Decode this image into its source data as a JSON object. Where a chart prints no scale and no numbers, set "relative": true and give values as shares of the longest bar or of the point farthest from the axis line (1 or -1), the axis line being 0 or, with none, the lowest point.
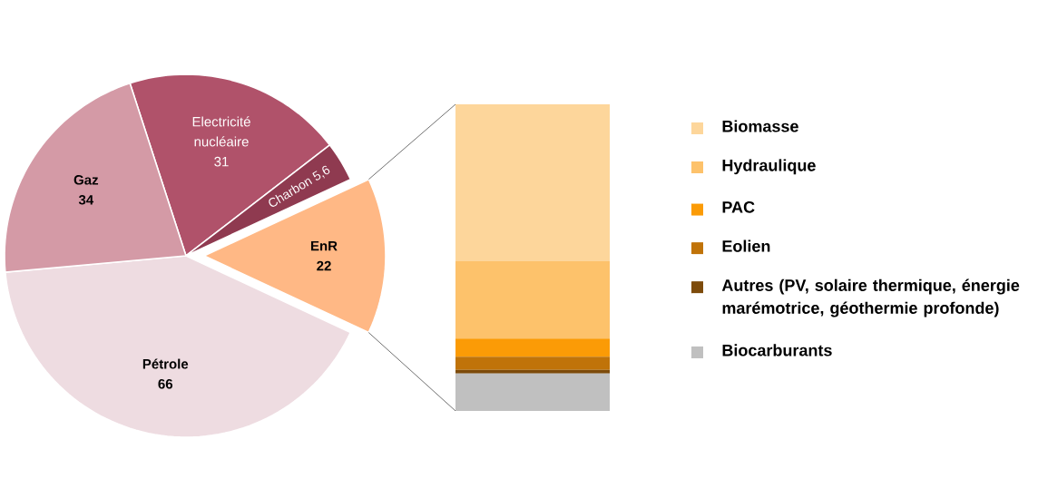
{
  "chart_data": [
    {
      "type": "pie",
      "categories": [
        "Electricité nucléaire",
        "Charbon",
        "EnR",
        "Pétrole",
        "Gaz"
      ],
      "values": [
        31,
        5.6,
        22,
        66,
        34
      ],
      "value_labels": [
        "31",
        "5,6",
        "22",
        "66",
        "34"
      ],
      "colors": [
        "#b0526a",
        "#8f3a50",
        "#ffb885",
        "#eedce1",
        "#d49aa6"
      ]
    },
    {
      "type": "bar",
      "stacked": true,
      "relative": true,
      "categories": [
        null
      ],
      "legend": "right",
      "series": [
        {
          "name": "Biocarburants",
          "color": "#c0c0c0",
          "values": [
            0.122
          ]
        },
        {
          "name": "Autres (PV, solaire thermique, énergie marémotrice, géothermie profonde)",
          "color": "#7d4b0b",
          "values": [
            0.012
          ]
        },
        {
          "name": "Eolien",
          "color": "#c07309",
          "values": [
            0.043
          ]
        },
        {
          "name": "PAC",
          "color": "#fb9b06",
          "values": [
            0.059
          ]
        },
        {
          "name": "Hydraulique",
          "color": "#fdc26b",
          "values": [
            0.252
          ]
        },
        {
          "name": "Biomasse",
          "color": "#fdd69b",
          "values": [
            0.512
          ]
        }
      ]
    }
  ]
}
